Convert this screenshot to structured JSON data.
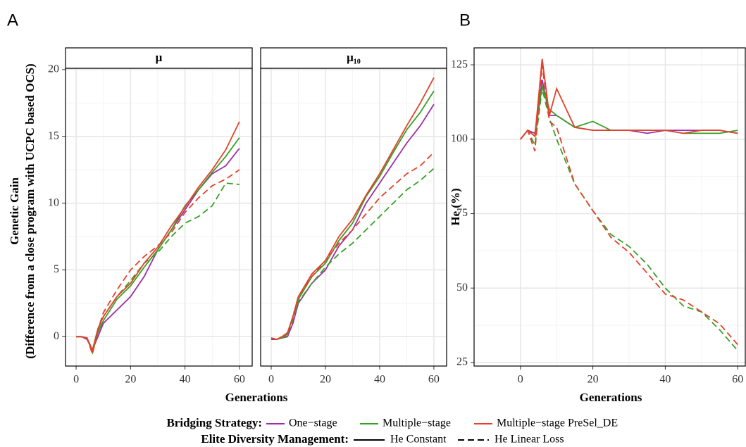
{
  "panel_labels": [
    "A",
    "B"
  ],
  "legend": {
    "strategy_title": "Bridging Strategy:",
    "strategies": [
      {
        "name": "One−stage",
        "color": "#9b2fa5"
      },
      {
        "name": "Multiple−stage",
        "color": "#36a024"
      },
      {
        "name": "Multiple−stage PreSel_DE",
        "color": "#e3412b"
      }
    ],
    "diversity_title": "Elite Diversity Management:",
    "diversity": [
      {
        "name": "He Constant",
        "dash": "solid"
      },
      {
        "name": "He Linear Loss",
        "dash": "dashed"
      }
    ]
  },
  "chart_data": [
    {
      "type": "line",
      "facet_label": "μ",
      "xlabel": "Generations",
      "ylabel": [
        "Genetic Gain",
        "(Difference from a close program with UCPC based OCS)"
      ],
      "xlim": [
        -3.9,
        64.7
      ],
      "xticks": [
        0,
        20,
        40,
        60
      ],
      "ylim": [
        -2.2,
        20.1
      ],
      "yticks": [
        0,
        5,
        10,
        15,
        20
      ],
      "grid": true,
      "x": [
        0,
        2,
        4,
        6,
        8,
        10,
        15,
        20,
        25,
        30,
        35,
        40,
        45,
        50,
        55,
        60
      ],
      "series": [
        {
          "strategy": 0,
          "management": 0,
          "values": [
            0,
            0,
            -0.2,
            -1.0,
            0,
            1,
            2.0,
            3,
            4.5,
            6.5,
            8,
            9.5,
            11,
            12.2,
            12.8,
            14.1
          ]
        },
        {
          "strategy": 1,
          "management": 0,
          "values": [
            0,
            0,
            -0.1,
            -1.2,
            0.3,
            1.2,
            2.8,
            3.8,
            5.2,
            6.5,
            8,
            9.8,
            11,
            12.3,
            13.5,
            14.9
          ]
        },
        {
          "strategy": 1,
          "management": 1,
          "values": [
            0,
            0,
            -0.1,
            -1.1,
            0.5,
            1.5,
            3,
            4.2,
            5.5,
            6.3,
            7.5,
            8.5,
            9,
            9.8,
            11.5,
            11.4
          ]
        },
        {
          "strategy": 2,
          "management": 0,
          "values": [
            0,
            0,
            -0.1,
            -1.0,
            0.6,
            1.5,
            3,
            4,
            5.5,
            6.7,
            8.3,
            9.7,
            11.2,
            12.5,
            14,
            16.1
          ]
        },
        {
          "strategy": 2,
          "management": 1,
          "values": [
            0,
            0,
            -0.1,
            -1.3,
            0.5,
            1.8,
            3.5,
            5,
            6,
            6.8,
            7.8,
            9.3,
            10.4,
            11.3,
            11.8,
            12.5
          ]
        }
      ]
    },
    {
      "type": "line",
      "facet_label": "μ₁₀",
      "xlim": [
        -3.9,
        64.7
      ],
      "xticks": [
        0,
        20,
        40,
        60
      ],
      "x": [
        0,
        2,
        4,
        6,
        8,
        10,
        15,
        20,
        25,
        30,
        35,
        40,
        45,
        50,
        55,
        60
      ],
      "series": [
        {
          "strategy": 0,
          "management": 0,
          "values": [
            -0.2,
            -0.2,
            -0.1,
            0,
            1,
            2.5,
            4,
            5,
            6.8,
            8,
            10,
            11.5,
            13,
            14.5,
            15.8,
            17.4
          ]
        },
        {
          "strategy": 1,
          "management": 0,
          "values": [
            -0.1,
            -0.2,
            -0.1,
            0.2,
            1.5,
            2.8,
            4.5,
            5.5,
            7.2,
            8.5,
            10.5,
            12,
            13.8,
            15.5,
            16.8,
            18.4
          ]
        },
        {
          "strategy": 1,
          "management": 1,
          "values": [
            -0.1,
            -0.2,
            -0.1,
            0.1,
            1.3,
            2.6,
            4,
            5.2,
            6.2,
            7,
            8,
            9,
            10,
            11,
            11.7,
            12.6
          ]
        },
        {
          "strategy": 2,
          "management": 0,
          "values": [
            -0.1,
            -0.2,
            0,
            0.3,
            1.5,
            3,
            4.7,
            5.7,
            7.5,
            8.8,
            10.6,
            12.2,
            14,
            15.8,
            17.5,
            19.4
          ]
        },
        {
          "strategy": 2,
          "management": 1,
          "values": [
            -0.1,
            -0.2,
            0,
            0.2,
            1.5,
            3,
            4.5,
            5.7,
            7,
            8,
            9.2,
            10.4,
            11.3,
            12.2,
            12.8,
            13.8
          ]
        }
      ]
    },
    {
      "type": "line",
      "xlabel": "Generations",
      "ylabel": [
        "He (%)"
      ],
      "xlim": [
        -12.8,
        62.1
      ],
      "xticks": [
        0,
        20,
        40,
        60
      ],
      "ylim": [
        23.8,
        130.7
      ],
      "yticks": [
        25,
        50,
        75,
        100,
        125
      ],
      "grid": true,
      "x": [
        0,
        2,
        4,
        6,
        8,
        10,
        15,
        20,
        25,
        30,
        35,
        40,
        45,
        50,
        55,
        60
      ],
      "series": [
        {
          "strategy": 0,
          "management": 0,
          "values": [
            100,
            103,
            102,
            120,
            108,
            108,
            104,
            103,
            103,
            103,
            102,
            103,
            103,
            103,
            103,
            102
          ]
        },
        {
          "strategy": 1,
          "management": 0,
          "values": [
            100,
            103,
            101,
            118,
            110,
            108,
            104,
            106,
            103,
            103,
            103,
            103,
            102,
            102,
            102,
            103
          ]
        },
        {
          "strategy": 1,
          "management": 1,
          "values": [
            100,
            103,
            98,
            117,
            107,
            100,
            85,
            76,
            68,
            64,
            58,
            50,
            44,
            42,
            36,
            29
          ]
        },
        {
          "strategy": 2,
          "management": 0,
          "values": [
            100,
            103,
            101,
            127,
            108,
            117,
            104,
            103,
            103,
            103,
            103,
            103,
            102,
            103,
            103,
            102
          ]
        },
        {
          "strategy": 2,
          "management": 1,
          "values": [
            100,
            103,
            96,
            125,
            106,
            104,
            85,
            76,
            67,
            62,
            55,
            48,
            46,
            42,
            38,
            31
          ]
        }
      ]
    }
  ]
}
